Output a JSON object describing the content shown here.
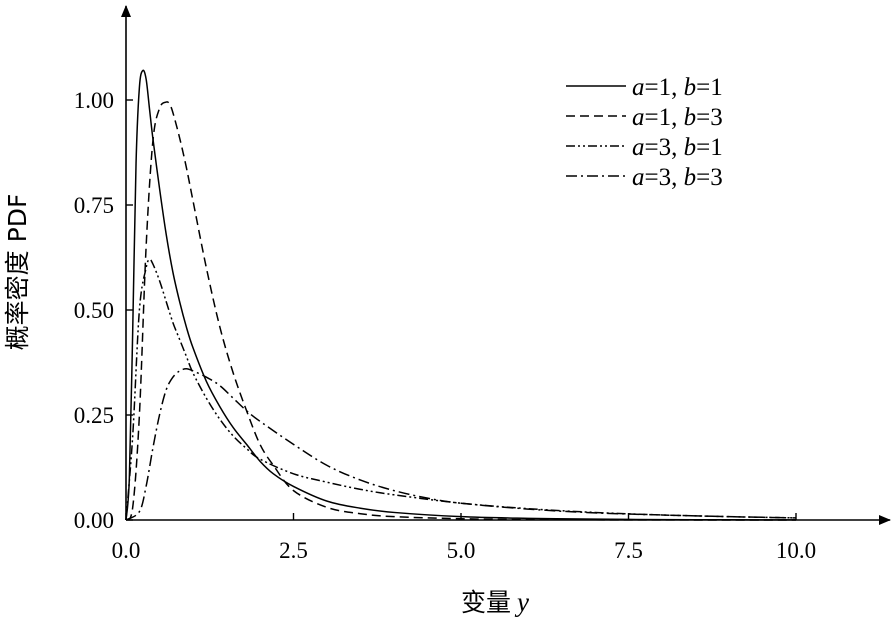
{
  "chart_data": {
    "type": "line",
    "xlabel": "变量",
    "xlabel_var": "y",
    "ylabel": "概率密度 PDF",
    "xlim": [
      0,
      11.5
    ],
    "ylim": [
      0,
      1.2
    ],
    "x_ticks": [
      {
        "value": 0.0,
        "label": "0.0"
      },
      {
        "value": 2.5,
        "label": "2.5"
      },
      {
        "value": 5.0,
        "label": "5.0"
      },
      {
        "value": 7.5,
        "label": "7.5"
      },
      {
        "value": 10.0,
        "label": "10.0"
      }
    ],
    "y_ticks": [
      {
        "value": 0.0,
        "label": "0.00"
      },
      {
        "value": 0.25,
        "label": "0.25"
      },
      {
        "value": 0.5,
        "label": "0.50"
      },
      {
        "value": 0.75,
        "label": "0.75"
      },
      {
        "value": 1.0,
        "label": "1.00"
      }
    ],
    "grid": false,
    "legend_position": "top-right",
    "series": [
      {
        "name": "a=1, b=1",
        "a": "1",
        "b": "1",
        "style": "solid",
        "x": [
          0.0,
          0.05,
          0.1,
          0.15,
          0.2,
          0.25,
          0.3,
          0.35,
          0.4,
          0.5,
          0.6,
          0.7,
          0.8,
          0.9,
          1.0,
          1.2,
          1.4,
          1.6,
          1.8,
          2.0,
          2.2,
          2.5,
          3.0,
          3.5,
          4.0,
          5.0,
          6.0,
          7.0,
          8.0,
          9.0,
          10.0
        ],
        "y": [
          0.0,
          0.1,
          0.45,
          0.85,
          1.03,
          1.07,
          1.05,
          0.98,
          0.91,
          0.79,
          0.68,
          0.59,
          0.52,
          0.46,
          0.41,
          0.33,
          0.27,
          0.22,
          0.18,
          0.14,
          0.11,
          0.08,
          0.045,
          0.028,
          0.018,
          0.008,
          0.004,
          0.002,
          0.001,
          0.0005,
          0.0002
        ]
      },
      {
        "name": "a=1, b=3",
        "a": "1",
        "b": "3",
        "style": "dashed",
        "x": [
          0.0,
          0.1,
          0.2,
          0.3,
          0.4,
          0.5,
          0.6,
          0.65,
          0.7,
          0.8,
          0.9,
          1.0,
          1.2,
          1.4,
          1.6,
          1.8,
          2.0,
          2.2,
          2.5,
          3.0,
          3.5,
          4.0,
          5.0,
          6.0,
          7.0,
          8.0,
          9.0,
          10.0
        ],
        "y": [
          0.0,
          0.03,
          0.25,
          0.65,
          0.9,
          0.98,
          0.995,
          0.99,
          0.97,
          0.91,
          0.84,
          0.76,
          0.6,
          0.46,
          0.35,
          0.26,
          0.18,
          0.13,
          0.07,
          0.03,
          0.015,
          0.008,
          0.003,
          0.001,
          0.0005,
          0.0002,
          0.0001,
          0.0
        ]
      },
      {
        "name": "a=3, b=1",
        "a": "3",
        "b": "1",
        "style": "dash-dot-dot",
        "x": [
          0.0,
          0.1,
          0.2,
          0.3,
          0.35,
          0.4,
          0.5,
          0.6,
          0.7,
          0.8,
          0.9,
          1.0,
          1.2,
          1.4,
          1.6,
          1.8,
          2.0,
          2.5,
          3.0,
          3.5,
          4.0,
          5.0,
          6.0,
          7.0,
          8.0,
          9.0,
          10.0
        ],
        "y": [
          0.0,
          0.2,
          0.5,
          0.6,
          0.62,
          0.61,
          0.57,
          0.52,
          0.47,
          0.43,
          0.39,
          0.35,
          0.29,
          0.24,
          0.2,
          0.17,
          0.145,
          0.11,
          0.09,
          0.073,
          0.06,
          0.04,
          0.027,
          0.018,
          0.012,
          0.008,
          0.005
        ]
      },
      {
        "name": "a=3, b=3",
        "a": "3",
        "b": "3",
        "style": "dash-dot",
        "x": [
          0.0,
          0.2,
          0.3,
          0.4,
          0.5,
          0.6,
          0.7,
          0.8,
          0.9,
          1.0,
          1.2,
          1.4,
          1.6,
          1.8,
          2.0,
          2.5,
          3.0,
          3.5,
          4.0,
          4.5,
          5.0,
          6.0,
          7.0,
          8.0,
          9.0,
          10.0
        ],
        "y": [
          0.0,
          0.02,
          0.08,
          0.17,
          0.25,
          0.31,
          0.34,
          0.355,
          0.36,
          0.355,
          0.34,
          0.32,
          0.29,
          0.26,
          0.235,
          0.18,
          0.13,
          0.095,
          0.07,
          0.052,
          0.04,
          0.026,
          0.017,
          0.012,
          0.008,
          0.005
        ]
      }
    ]
  }
}
